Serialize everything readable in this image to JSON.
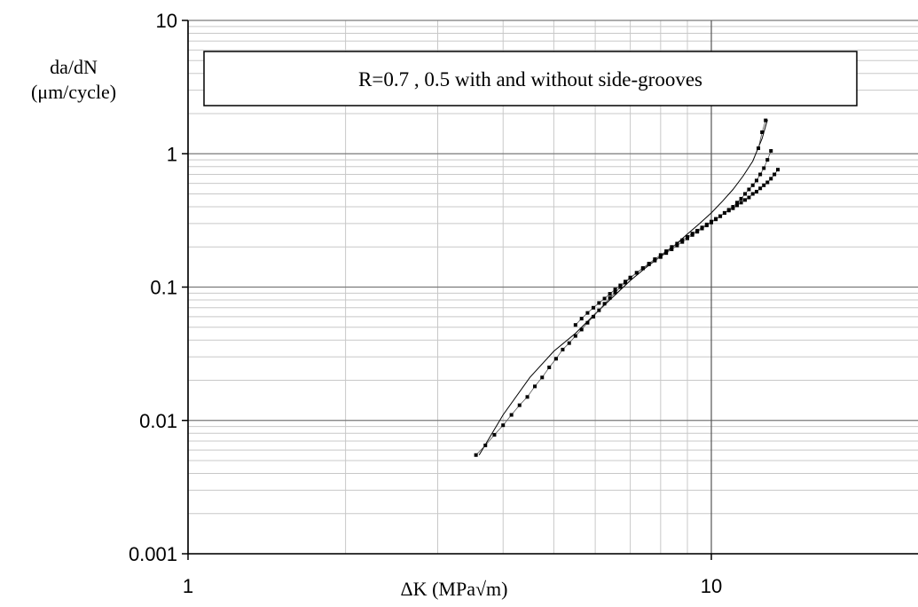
{
  "chart_data": {
    "type": "scatter",
    "title": "R=0.7 , 0.5 with and without side-grooves",
    "xlabel": "ΔK (MPa√m)",
    "ylabel_lines": [
      "da/dN",
      "(μm/cycle)"
    ],
    "x_scale": "log",
    "y_scale": "log",
    "xlim": [
      1,
      20
    ],
    "ylim": [
      0.001,
      10
    ],
    "x_ticks": [
      1,
      10
    ],
    "x_tick_labels": [
      "1",
      "10"
    ],
    "y_ticks": [
      0.001,
      0.01,
      0.1,
      1,
      10
    ],
    "y_tick_labels": [
      "0.001",
      "0.01",
      "0.1",
      "1",
      "10"
    ],
    "grid": "major and minor",
    "line_color": "#000000",
    "series": [
      {
        "style": "line",
        "x": [
          3.6,
          4.0,
          4.5,
          5.0,
          5.5,
          6.0,
          6.5,
          7.0,
          7.5,
          8.0,
          8.5,
          9.0,
          9.5,
          10.0,
          10.5,
          11.0,
          11.5,
          12.0,
          12.5,
          12.8
        ],
        "y": [
          0.0055,
          0.011,
          0.021,
          0.033,
          0.045,
          0.063,
          0.085,
          0.112,
          0.14,
          0.17,
          0.205,
          0.25,
          0.3,
          0.36,
          0.44,
          0.54,
          0.68,
          0.88,
          1.3,
          1.8
        ]
      },
      {
        "style": "markers",
        "x": [
          3.55,
          3.7,
          3.85,
          4.0,
          4.15,
          4.3,
          4.45,
          4.6,
          4.75,
          4.9,
          5.05,
          5.2,
          5.35,
          5.5,
          5.65,
          5.8,
          5.95,
          6.1,
          6.25,
          6.4,
          6.55,
          6.7,
          6.85,
          7.0,
          7.2,
          7.4,
          7.6,
          7.8,
          8.0,
          8.2,
          8.4,
          8.6,
          8.8,
          9.0,
          9.2,
          9.4,
          9.6,
          9.8,
          10.0,
          10.2,
          10.4,
          10.6,
          10.8,
          11.0,
          11.2,
          11.4,
          11.6,
          11.8,
          12.0,
          12.2,
          12.4,
          12.6,
          12.8,
          13.0,
          13.2,
          13.4
        ],
        "y": [
          0.0055,
          0.0065,
          0.0078,
          0.0092,
          0.011,
          0.013,
          0.015,
          0.018,
          0.021,
          0.025,
          0.029,
          0.034,
          0.038,
          0.043,
          0.048,
          0.054,
          0.06,
          0.067,
          0.075,
          0.083,
          0.091,
          0.1,
          0.108,
          0.117,
          0.128,
          0.139,
          0.15,
          0.162,
          0.174,
          0.186,
          0.2,
          0.212,
          0.225,
          0.238,
          0.252,
          0.265,
          0.28,
          0.295,
          0.31,
          0.325,
          0.34,
          0.36,
          0.375,
          0.39,
          0.41,
          0.43,
          0.45,
          0.47,
          0.5,
          0.52,
          0.55,
          0.58,
          0.61,
          0.65,
          0.7,
          0.76
        ]
      },
      {
        "style": "markers",
        "x": [
          5.5,
          5.65,
          5.8,
          5.95,
          6.1,
          6.25,
          6.4,
          6.55,
          6.7,
          6.85,
          7.0,
          7.2,
          7.4,
          7.6,
          7.8,
          8.0,
          8.2,
          8.4,
          8.6,
          8.8,
          9.0,
          9.2,
          9.4,
          9.6,
          9.8,
          10.0,
          10.2,
          10.4,
          10.6,
          10.8,
          11.0,
          11.2,
          11.4,
          11.6,
          11.8,
          12.0,
          12.2,
          12.4,
          12.6,
          12.8,
          13.0
        ],
        "y": [
          0.052,
          0.058,
          0.064,
          0.07,
          0.076,
          0.082,
          0.089,
          0.096,
          0.103,
          0.11,
          0.118,
          0.128,
          0.138,
          0.148,
          0.158,
          0.168,
          0.18,
          0.192,
          0.205,
          0.218,
          0.232,
          0.246,
          0.26,
          0.275,
          0.29,
          0.305,
          0.322,
          0.34,
          0.36,
          0.38,
          0.4,
          0.43,
          0.46,
          0.5,
          0.54,
          0.58,
          0.63,
          0.7,
          0.78,
          0.9,
          1.05
        ]
      },
      {
        "style": "markers",
        "x": [
          12.3,
          12.5,
          12.7
        ],
        "y": [
          1.1,
          1.45,
          1.78
        ]
      }
    ]
  }
}
